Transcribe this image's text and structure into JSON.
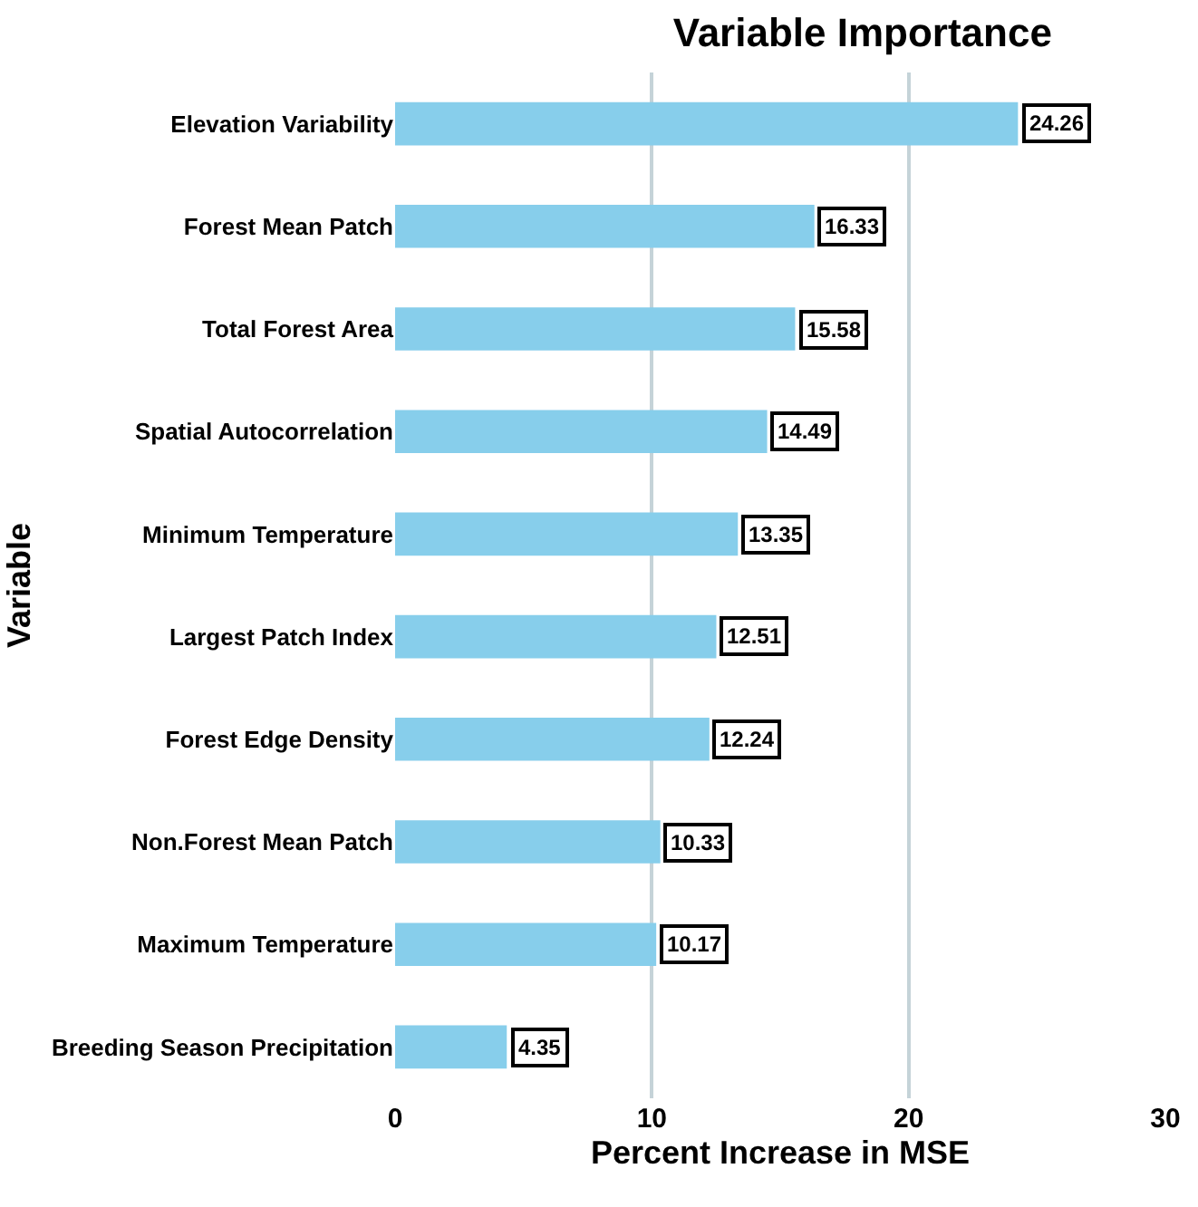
{
  "chart_data": {
    "type": "bar",
    "orientation": "horizontal",
    "title": "Variable Importance",
    "xlabel": "Percent Increase in MSE",
    "ylabel": "Variable",
    "categories": [
      "Elevation Variability",
      "Forest Mean Patch",
      "Total Forest Area",
      "Spatial Autocorrelation",
      "Minimum Temperature",
      "Largest Patch Index",
      "Forest Edge Density",
      "Non.Forest Mean Patch",
      "Maximum Temperature",
      "Breeding Season Precipitation"
    ],
    "values": [
      24.26,
      16.33,
      15.58,
      14.49,
      13.35,
      12.51,
      12.24,
      10.33,
      10.17,
      4.35
    ],
    "color": "#87ceeb",
    "xlim": [
      0,
      30
    ],
    "xticks": [
      0,
      10,
      20,
      30
    ],
    "grid": "x",
    "data_labels": true
  }
}
